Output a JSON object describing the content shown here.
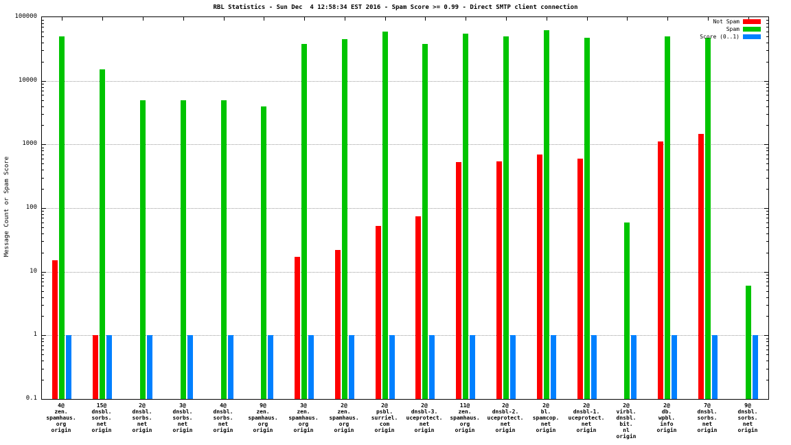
{
  "title": "RBL Statistics - Sun Dec  4 12:58:34 EST 2016 - Spam Score >= 0.99 - Direct SMTP client connection",
  "ylabel": "Message Count or Spam Score",
  "chart_data": {
    "type": "bar",
    "yscale": "log",
    "ylim": [
      0.1,
      100000
    ],
    "ytick_labels": [
      "100000",
      "10000",
      "1000",
      "100",
      "10",
      "1",
      "0.1"
    ],
    "grid": true,
    "legend_position": "top-right",
    "categories": [
      [
        "4@",
        "zen.",
        "spamhaus.",
        "org",
        "origin"
      ],
      [
        "15@",
        "dnsbl.",
        "sorbs.",
        "net",
        "origin"
      ],
      [
        "2@",
        "dnsbl.",
        "sorbs.",
        "net",
        "origin"
      ],
      [
        "3@",
        "dnsbl.",
        "sorbs.",
        "net",
        "origin"
      ],
      [
        "4@",
        "dnsbl.",
        "sorbs.",
        "net",
        "origin"
      ],
      [
        "9@",
        "zen.",
        "spamhaus.",
        "org",
        "origin"
      ],
      [
        "3@",
        "zen.",
        "spamhaus.",
        "org",
        "origin"
      ],
      [
        "2@",
        "zen.",
        "spamhaus.",
        "org",
        "origin"
      ],
      [
        "2@",
        "psbl.",
        "surriel.",
        "com",
        "origin"
      ],
      [
        "2@",
        "dnsbl-3.",
        "uceprotect.",
        "net",
        "origin"
      ],
      [
        "11@",
        "zen.",
        "spamhaus.",
        "org",
        "origin"
      ],
      [
        "2@",
        "dnsbl-2.",
        "uceprotect.",
        "net",
        "origin"
      ],
      [
        "2@",
        "bl.",
        "spamcop.",
        "net",
        "origin"
      ],
      [
        "2@",
        "dnsbl-1.",
        "uceprotect.",
        "net",
        "origin"
      ],
      [
        "2@",
        "virbl.",
        "dnsbl.",
        "bit.",
        "nl",
        "origin"
      ],
      [
        "2@",
        "db.",
        "wpbl.",
        "info",
        "origin"
      ],
      [
        "7@",
        "dnsbl.",
        "sorbs.",
        "net",
        "origin"
      ],
      [
        "9@",
        "dnsbl.",
        "sorbs.",
        "net",
        "origin"
      ]
    ],
    "series": [
      {
        "name": "Not Spam",
        "color": "#ff0000",
        "values": [
          15,
          1,
          null,
          null,
          null,
          null,
          17,
          22,
          52,
          75,
          530,
          540,
          700,
          600,
          null,
          1100,
          1450,
          null
        ]
      },
      {
        "name": "Spam",
        "color": "#00c400",
        "values": [
          50000,
          15000,
          5000,
          5000,
          5000,
          4000,
          38000,
          45000,
          60000,
          38000,
          55000,
          50000,
          62000,
          48000,
          60,
          50000,
          48000,
          6
        ]
      },
      {
        "name": "Score (0..1)",
        "color": "#0080ff",
        "values": [
          1,
          1,
          1,
          1,
          1,
          1,
          1,
          1,
          1,
          1,
          1,
          1,
          1,
          1,
          1,
          1,
          1,
          1
        ]
      }
    ]
  }
}
